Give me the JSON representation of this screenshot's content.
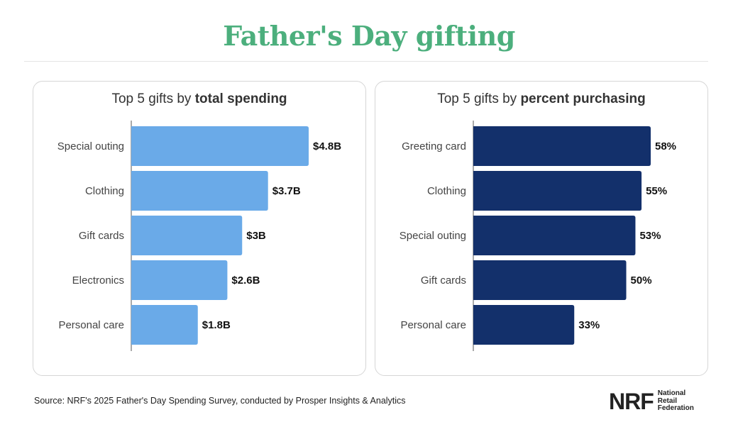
{
  "title": "Father's Day gifting",
  "footer": {
    "source": "Source: NRF's 2025 Father's Day Spending Survey, conducted by Prosper Insights & Analytics",
    "logo_mark": "NRF",
    "logo_line1": "National",
    "logo_line2": "Retail",
    "logo_line3": "Federation"
  },
  "colors": {
    "title": "#4caf7d",
    "left_bars": "#6aaae8",
    "right_bars": "#13306b"
  },
  "chart_data": [
    {
      "type": "bar",
      "orientation": "horizontal",
      "title_prefix": "Top 5 gifts by ",
      "title_bold": "total spending",
      "categories": [
        "Special outing",
        "Clothing",
        "Gift cards",
        "Electronics",
        "Personal care"
      ],
      "values": [
        4.8,
        3.7,
        3,
        2.6,
        1.8
      ],
      "data_labels": [
        "$4.8B",
        "$3.7B",
        "$3B",
        "$2.6B",
        "$1.8B"
      ],
      "xlim": [
        0,
        4.8
      ],
      "grid": false
    },
    {
      "type": "bar",
      "orientation": "horizontal",
      "title_prefix": "Top 5 gifts by ",
      "title_bold": "percent purchasing",
      "categories": [
        "Greeting card",
        "Clothing",
        "Special outing",
        "Gift cards",
        "Personal care"
      ],
      "values": [
        58,
        55,
        53,
        50,
        33
      ],
      "data_labels": [
        "58%",
        "55%",
        "53%",
        "50%",
        "33%"
      ],
      "xlim": [
        0,
        58
      ],
      "grid": false
    }
  ]
}
